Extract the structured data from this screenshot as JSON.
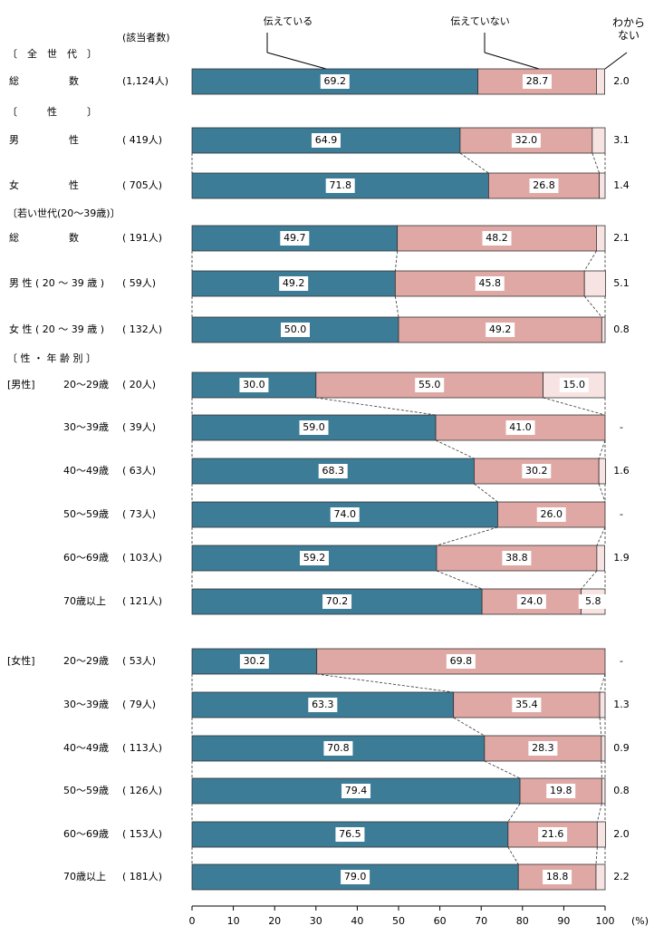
{
  "chart_data": {
    "type": "bar",
    "orientation": "horizontal",
    "stacked": true,
    "count_header": "(該当者数)",
    "section_labels": [
      "〔　全　世　代　〕",
      "〔　　　性　　　〕",
      "〔若い世代(20～39歳)〕",
      "〔 性 ・ 年 齢 別 〕"
    ],
    "group_labels": [
      "[男性]",
      "[女性]"
    ],
    "categories": [
      "総　　　　　数",
      "男　　　　　性",
      "女　　　　　性",
      "総　　　　　数",
      "男 性 ( 20 ～ 39 歳 )",
      "女 性 ( 20 ～ 39 歳 )",
      "20～29歳",
      "30～39歳",
      "40～49歳",
      "50～59歳",
      "60～69歳",
      "70歳以上",
      "20～29歳",
      "30～39歳",
      "40～49歳",
      "50～59歳",
      "60～69歳",
      "70歳以上"
    ],
    "counts": [
      "(1,124人)",
      "( 419人)",
      "( 705人)",
      "( 191人)",
      "(  59人)",
      "( 132人)",
      "(  20人)",
      "(  39人)",
      "(  63人)",
      "(  73人)",
      "( 103人)",
      "( 121人)",
      "(  53人)",
      "(  79人)",
      "( 113人)",
      "( 126人)",
      "( 153人)",
      "( 181人)"
    ],
    "series": [
      {
        "name": "伝えている",
        "color": "#3d7c96",
        "values": [
          69.2,
          64.9,
          71.8,
          49.7,
          49.2,
          50.0,
          30.0,
          59.0,
          68.3,
          74.0,
          59.2,
          70.2,
          30.2,
          63.3,
          70.8,
          79.4,
          76.5,
          79.0
        ],
        "value_labels": [
          "69.2",
          "64.9",
          "71.8",
          "49.7",
          "49.2",
          "50.0",
          "30.0",
          "59.0",
          "68.3",
          "74.0",
          "59.2",
          "70.2",
          "30.2",
          "63.3",
          "70.8",
          "79.4",
          "76.5",
          "79.0"
        ]
      },
      {
        "name": "伝えていない",
        "color": "#dfa8a5",
        "values": [
          28.7,
          32.0,
          26.8,
          48.2,
          45.8,
          49.2,
          55.0,
          41.0,
          30.2,
          26.0,
          38.8,
          24.0,
          69.8,
          35.4,
          28.3,
          19.8,
          21.6,
          18.8
        ],
        "value_labels": [
          "28.7",
          "32.0",
          "26.8",
          "48.2",
          "45.8",
          "49.2",
          "55.0",
          "41.0",
          "30.2",
          "26.0",
          "38.8",
          "24.0",
          "69.8",
          "35.4",
          "28.3",
          "19.8",
          "21.6",
          "18.8"
        ]
      },
      {
        "name": "わからない",
        "color": "#f8e3e3",
        "values": [
          2.0,
          3.1,
          1.4,
          2.1,
          5.1,
          0.8,
          15.0,
          0,
          1.6,
          0,
          1.9,
          5.8,
          0,
          1.3,
          0.9,
          0.8,
          2.0,
          2.2
        ],
        "value_labels": [
          "2.0",
          "3.1",
          "1.4",
          "2.1",
          "5.1",
          "0.8",
          "15.0",
          "-",
          "1.6",
          "-",
          "1.9",
          "5.8",
          "-",
          "1.3",
          "0.9",
          "0.8",
          "2.0",
          "2.2"
        ]
      }
    ],
    "xlim": [
      0,
      100
    ],
    "xticks": [
      0,
      10,
      20,
      30,
      40,
      50,
      60,
      70,
      80,
      90,
      100
    ],
    "x_unit": "(%)"
  }
}
